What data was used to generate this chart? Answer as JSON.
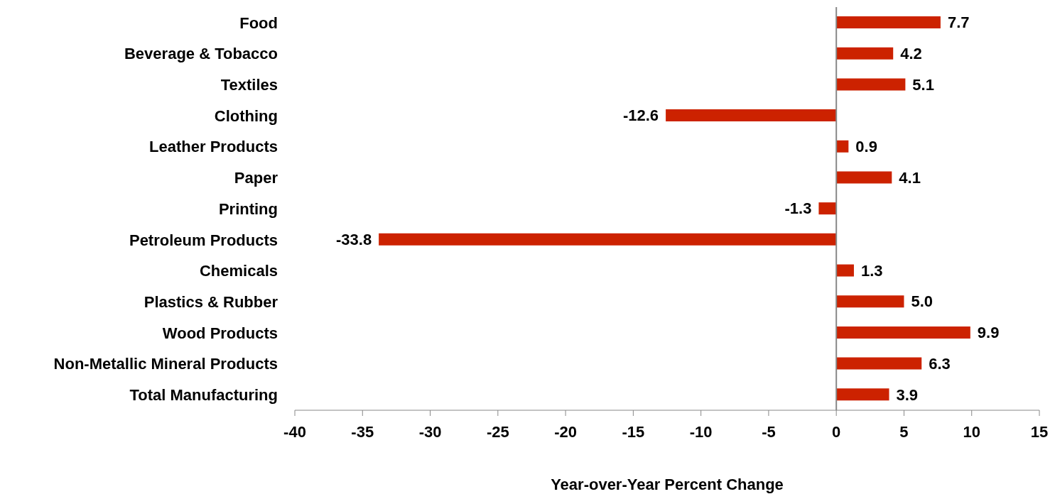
{
  "chart_data": {
    "type": "bar",
    "orientation": "horizontal",
    "xlabel": "Year-over-Year Percent Change",
    "categories": [
      "Food",
      "Beverage & Tobacco",
      "Textiles",
      "Clothing",
      "Leather Products",
      "Paper",
      "Printing",
      "Petroleum Products",
      "Chemicals",
      "Plastics & Rubber",
      "Wood Products",
      "Non-Metallic Mineral Products",
      "Total Manufacturing"
    ],
    "values": [
      7.7,
      4.2,
      5.1,
      -12.6,
      0.9,
      4.1,
      -1.3,
      -33.8,
      1.3,
      5.0,
      9.9,
      6.3,
      3.9
    ],
    "value_labels": [
      "7.7",
      "4.2",
      "5.1",
      "-12.6",
      "0.9",
      "4.1",
      "-1.3",
      "-33.8",
      "1.3",
      "5.0",
      "9.9",
      "6.3",
      "3.9"
    ],
    "color": "#cc2200",
    "xlim": [
      -40,
      15
    ],
    "xticks": [
      -40,
      -35,
      -30,
      -25,
      -20,
      -15,
      -10,
      -5,
      0,
      5,
      10,
      15
    ],
    "legend": false
  }
}
